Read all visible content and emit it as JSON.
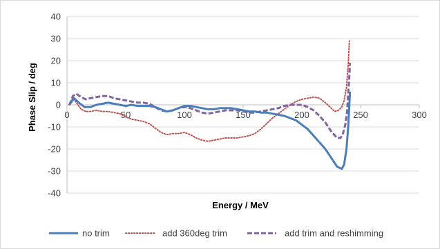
{
  "chart_data": {
    "type": "line",
    "title": "",
    "xlabel": "Energy / MeV",
    "ylabel": "Phase Slip / deg",
    "xlim": [
      0,
      300
    ],
    "ylim": [
      -40,
      40
    ],
    "xticks": [
      0,
      50,
      100,
      150,
      200,
      250,
      300
    ],
    "yticks": [
      -40,
      -30,
      -20,
      -10,
      0,
      10,
      20,
      30,
      40
    ],
    "xtick_labels": [
      "0",
      "50",
      "100",
      "150",
      "200",
      "250",
      "300"
    ],
    "ytick_labels": [
      "-40",
      "-30",
      "-20",
      "-10",
      "0",
      "10",
      "20",
      "30",
      "40"
    ],
    "grid": "horizontal",
    "legend_position": "bottom",
    "series": [
      {
        "name": "no trim",
        "color": "#4a7ebb",
        "style": "solid",
        "points": [
          [
            2,
            0
          ],
          [
            6,
            3
          ],
          [
            10,
            1
          ],
          [
            15,
            -1
          ],
          [
            20,
            -1
          ],
          [
            25,
            0
          ],
          [
            30,
            0.5
          ],
          [
            35,
            1
          ],
          [
            40,
            0.5
          ],
          [
            45,
            0
          ],
          [
            50,
            -0.5
          ],
          [
            55,
            0
          ],
          [
            60,
            -0.5
          ],
          [
            65,
            -0.5
          ],
          [
            70,
            -0.5
          ],
          [
            75,
            -1
          ],
          [
            80,
            -2
          ],
          [
            85,
            -3
          ],
          [
            90,
            -2.5
          ],
          [
            95,
            -1.5
          ],
          [
            100,
            -0.5
          ],
          [
            105,
            -0.5
          ],
          [
            110,
            -1
          ],
          [
            115,
            -1.5
          ],
          [
            120,
            -2
          ],
          [
            125,
            -2
          ],
          [
            130,
            -1.5
          ],
          [
            135,
            -1.5
          ],
          [
            140,
            -1.5
          ],
          [
            145,
            -2
          ],
          [
            150,
            -2.5
          ],
          [
            155,
            -3
          ],
          [
            160,
            -3
          ],
          [
            165,
            -3.5
          ],
          [
            170,
            -3.5
          ],
          [
            175,
            -4
          ],
          [
            180,
            -4.5
          ],
          [
            185,
            -5
          ],
          [
            190,
            -6
          ],
          [
            195,
            -7
          ],
          [
            200,
            -9
          ],
          [
            205,
            -11
          ],
          [
            210,
            -14
          ],
          [
            215,
            -17
          ],
          [
            220,
            -20
          ],
          [
            225,
            -24
          ],
          [
            230,
            -28
          ],
          [
            234,
            -29
          ],
          [
            236,
            -27
          ],
          [
            238,
            -20
          ],
          [
            239.5,
            -10
          ],
          [
            240.5,
            0
          ],
          [
            241,
            6
          ]
        ]
      },
      {
        "name": "add 360deg trim",
        "color": "#c0504d",
        "style": "dotted",
        "points": [
          [
            2,
            0
          ],
          [
            5,
            3
          ],
          [
            8,
            1
          ],
          [
            12,
            -2
          ],
          [
            16,
            -3
          ],
          [
            20,
            -3
          ],
          [
            25,
            -2.5
          ],
          [
            30,
            -3
          ],
          [
            35,
            -3
          ],
          [
            40,
            -3.5
          ],
          [
            45,
            -4
          ],
          [
            50,
            -5.5
          ],
          [
            55,
            -6.5
          ],
          [
            60,
            -7
          ],
          [
            65,
            -7.5
          ],
          [
            70,
            -8.5
          ],
          [
            75,
            -10.5
          ],
          [
            80,
            -12.5
          ],
          [
            85,
            -13.5
          ],
          [
            90,
            -13
          ],
          [
            95,
            -13
          ],
          [
            100,
            -12.5
          ],
          [
            105,
            -13.5
          ],
          [
            110,
            -15
          ],
          [
            115,
            -16
          ],
          [
            120,
            -16.5
          ],
          [
            125,
            -16
          ],
          [
            130,
            -15.5
          ],
          [
            135,
            -15
          ],
          [
            140,
            -15
          ],
          [
            145,
            -15
          ],
          [
            150,
            -14.5
          ],
          [
            155,
            -14
          ],
          [
            160,
            -13
          ],
          [
            165,
            -11
          ],
          [
            170,
            -8.5
          ],
          [
            175,
            -6
          ],
          [
            180,
            -4
          ],
          [
            185,
            -2
          ],
          [
            190,
            0
          ],
          [
            195,
            1.5
          ],
          [
            200,
            2.5
          ],
          [
            205,
            3
          ],
          [
            210,
            3.5
          ],
          [
            215,
            3
          ],
          [
            220,
            1
          ],
          [
            225,
            -1.5
          ],
          [
            228,
            -3
          ],
          [
            231,
            -2.5
          ],
          [
            234,
            -1
          ],
          [
            236,
            2
          ],
          [
            238,
            8
          ],
          [
            239.5,
            18
          ],
          [
            240.5,
            29
          ]
        ]
      },
      {
        "name": "add trim and reshimming",
        "color": "#8064a2",
        "style": "dashed",
        "points": [
          [
            2,
            0
          ],
          [
            5,
            4
          ],
          [
            8,
            5
          ],
          [
            12,
            3.5
          ],
          [
            16,
            2.5
          ],
          [
            20,
            3
          ],
          [
            25,
            3.5
          ],
          [
            30,
            4
          ],
          [
            35,
            4
          ],
          [
            40,
            3
          ],
          [
            45,
            2.5
          ],
          [
            50,
            2
          ],
          [
            55,
            1.5
          ],
          [
            60,
            1
          ],
          [
            65,
            1
          ],
          [
            70,
            0.5
          ],
          [
            75,
            -1
          ],
          [
            80,
            -2.5
          ],
          [
            85,
            -3
          ],
          [
            90,
            -2.5
          ],
          [
            95,
            -1.5
          ],
          [
            100,
            -1
          ],
          [
            105,
            -1.5
          ],
          [
            110,
            -2.5
          ],
          [
            115,
            -3.5
          ],
          [
            120,
            -4
          ],
          [
            125,
            -3.5
          ],
          [
            130,
            -3
          ],
          [
            135,
            -2.5
          ],
          [
            140,
            -2.5
          ],
          [
            145,
            -2.5
          ],
          [
            150,
            -3
          ],
          [
            155,
            -3.5
          ],
          [
            160,
            -3.5
          ],
          [
            165,
            -3
          ],
          [
            170,
            -2.5
          ],
          [
            175,
            -2
          ],
          [
            180,
            -1.5
          ],
          [
            185,
            -0.5
          ],
          [
            190,
            0
          ],
          [
            195,
            0
          ],
          [
            200,
            0
          ],
          [
            205,
            -1
          ],
          [
            210,
            -2.5
          ],
          [
            215,
            -5
          ],
          [
            220,
            -8
          ],
          [
            225,
            -12
          ],
          [
            230,
            -15
          ],
          [
            233,
            -15
          ],
          [
            235,
            -13
          ],
          [
            237,
            -9
          ],
          [
            238.5,
            -3
          ],
          [
            239.5,
            5
          ],
          [
            240.5,
            13
          ],
          [
            241,
            19
          ]
        ]
      }
    ]
  }
}
